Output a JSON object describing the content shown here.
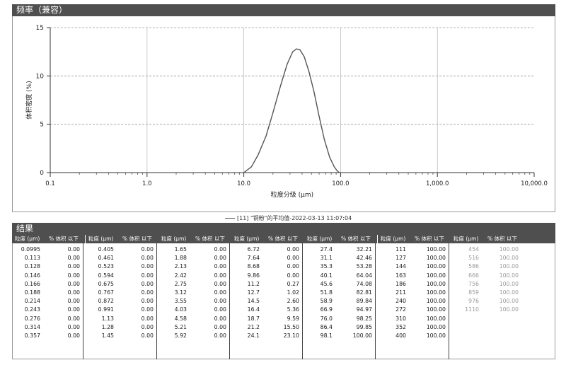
{
  "freq_panel": {
    "title": "频率（兼容）"
  },
  "chart_data": {
    "type": "line",
    "xscale": "log",
    "xlim": [
      0.1,
      10000
    ],
    "ylim": [
      0,
      15
    ],
    "xlabel": "粒度分级 (μm)",
    "ylabel": "体积密度 (%)",
    "xticks": [
      "0.1",
      "1.0",
      "10.0",
      "100.0",
      "1,000.0",
      "10,000.0"
    ],
    "yticks": [
      "0",
      "5",
      "10",
      "15"
    ],
    "grid": true,
    "series": [
      {
        "name": "[11] \"铜粉\"的平均值-2022-03-13 11:07:04",
        "x": [
          10,
          12,
          14,
          17,
          20,
          24,
          28,
          32,
          35,
          38,
          42,
          47,
          53,
          60,
          68,
          77,
          86,
          92,
          97
        ],
        "y": [
          0,
          0.6,
          1.8,
          3.8,
          6.2,
          9.0,
          11.2,
          12.5,
          12.8,
          12.7,
          12.0,
          10.5,
          8.4,
          5.8,
          3.4,
          1.6,
          0.6,
          0.2,
          0
        ]
      }
    ]
  },
  "results": {
    "title": "结果",
    "col_size_label": "粒度 (μm)",
    "col_pct_label": "% 体积 以下",
    "columns": [
      [
        [
          "0.0995",
          "0.00"
        ],
        [
          "0.113",
          "0.00"
        ],
        [
          "0.128",
          "0.00"
        ],
        [
          "0.146",
          "0.00"
        ],
        [
          "0.166",
          "0.00"
        ],
        [
          "0.188",
          "0.00"
        ],
        [
          "0.214",
          "0.00"
        ],
        [
          "0.243",
          "0.00"
        ],
        [
          "0.276",
          "0.00"
        ],
        [
          "0.314",
          "0.00"
        ],
        [
          "0.357",
          "0.00"
        ]
      ],
      [
        [
          "0.405",
          "0.00"
        ],
        [
          "0.461",
          "0.00"
        ],
        [
          "0.523",
          "0.00"
        ],
        [
          "0.594",
          "0.00"
        ],
        [
          "0.675",
          "0.00"
        ],
        [
          "0.767",
          "0.00"
        ],
        [
          "0.872",
          "0.00"
        ],
        [
          "0.991",
          "0.00"
        ],
        [
          "1.13",
          "0.00"
        ],
        [
          "1.28",
          "0.00"
        ],
        [
          "1.45",
          "0.00"
        ]
      ],
      [
        [
          "1.65",
          "0.00"
        ],
        [
          "1.88",
          "0.00"
        ],
        [
          "2.13",
          "0.00"
        ],
        [
          "2.42",
          "0.00"
        ],
        [
          "2.75",
          "0.00"
        ],
        [
          "3.12",
          "0.00"
        ],
        [
          "3.55",
          "0.00"
        ],
        [
          "4.03",
          "0.00"
        ],
        [
          "4.58",
          "0.00"
        ],
        [
          "5.21",
          "0.00"
        ],
        [
          "5.92",
          "0.00"
        ]
      ],
      [
        [
          "6.72",
          "0.00"
        ],
        [
          "7.64",
          "0.00"
        ],
        [
          "8.68",
          "0.00"
        ],
        [
          "9.86",
          "0.00"
        ],
        [
          "11.2",
          "0.27"
        ],
        [
          "12.7",
          "1.02"
        ],
        [
          "14.5",
          "2.60"
        ],
        [
          "16.4",
          "5.36"
        ],
        [
          "18.7",
          "9.59"
        ],
        [
          "21.2",
          "15.50"
        ],
        [
          "24.1",
          "23.10"
        ]
      ],
      [
        [
          "27.4",
          "32.21"
        ],
        [
          "31.1",
          "42.46"
        ],
        [
          "35.3",
          "53.28"
        ],
        [
          "40.1",
          "64.04"
        ],
        [
          "45.6",
          "74.08"
        ],
        [
          "51.8",
          "82.81"
        ],
        [
          "58.9",
          "89.84"
        ],
        [
          "66.9",
          "94.97"
        ],
        [
          "76.0",
          "98.25"
        ],
        [
          "86.4",
          "99.85"
        ],
        [
          "98.1",
          "100.00"
        ]
      ],
      [
        [
          "111",
          "100.00"
        ],
        [
          "127",
          "100.00"
        ],
        [
          "144",
          "100.00"
        ],
        [
          "163",
          "100.00"
        ],
        [
          "186",
          "100.00"
        ],
        [
          "211",
          "100.00"
        ],
        [
          "240",
          "100.00"
        ],
        [
          "272",
          "100.00"
        ],
        [
          "310",
          "100.00"
        ],
        [
          "352",
          "100.00"
        ],
        [
          "400",
          "100.00"
        ]
      ],
      [
        [
          "454",
          "100.00"
        ],
        [
          "516",
          "100.00"
        ],
        [
          "586",
          "100.00"
        ],
        [
          "666",
          "100.00"
        ],
        [
          "756",
          "100.00"
        ],
        [
          "859",
          "100.00"
        ],
        [
          "976",
          "100.00"
        ],
        [
          "1110",
          "100.00"
        ]
      ]
    ]
  }
}
